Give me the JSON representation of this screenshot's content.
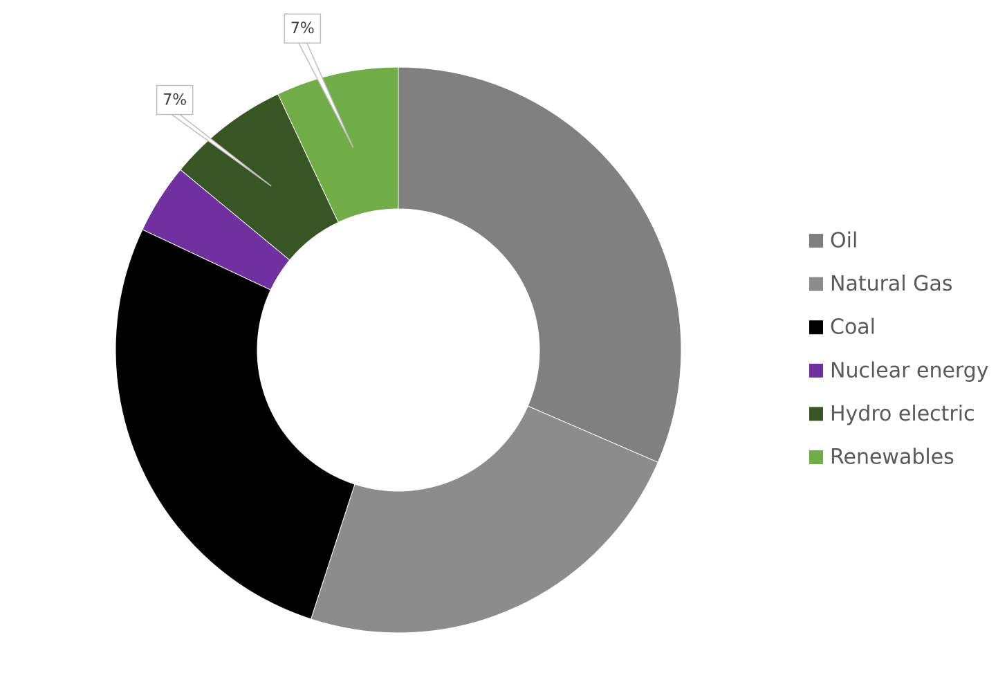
{
  "chart_data": {
    "type": "donut",
    "categories": [
      "Oil",
      "Natural Gas",
      "Coal",
      "Nuclear energy",
      "Hydro electric",
      "Renewables"
    ],
    "values": [
      31.5,
      23.5,
      27,
      4,
      7,
      7
    ],
    "value_labels": [
      null,
      null,
      null,
      null,
      "7%",
      "7%"
    ],
    "colors": [
      "#808080",
      "#8c8c8c",
      "#000000",
      "#7030a0",
      "#375623",
      "#70ad47"
    ],
    "legend": "right"
  }
}
